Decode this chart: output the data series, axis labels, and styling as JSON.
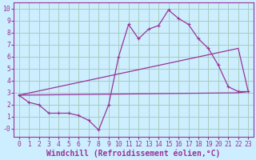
{
  "xlabel": "Windchill (Refroidissement éolien,°C)",
  "bg_color": "#cceeff",
  "grid_color": "#aaccbb",
  "line_color": "#993399",
  "xlim": [
    -0.5,
    23.5
  ],
  "ylim": [
    -0.7,
    10.5
  ],
  "xticks": [
    0,
    1,
    2,
    3,
    4,
    5,
    6,
    7,
    8,
    9,
    10,
    11,
    12,
    13,
    14,
    15,
    16,
    17,
    18,
    19,
    20,
    21,
    22,
    23
  ],
  "yticks": [
    0,
    1,
    2,
    3,
    4,
    5,
    6,
    7,
    8,
    9,
    10
  ],
  "ytick_labels": [
    "-0",
    "1",
    "2",
    "3",
    "4",
    "5",
    "6",
    "7",
    "8",
    "9",
    "10"
  ],
  "line1_x": [
    0,
    1,
    2,
    3,
    4,
    5,
    6,
    7,
    8,
    9,
    10,
    11,
    12,
    13,
    14,
    15,
    16,
    17,
    18,
    19,
    20,
    21,
    22,
    23
  ],
  "line1_y": [
    2.8,
    2.2,
    2.0,
    1.3,
    1.3,
    1.3,
    1.1,
    0.7,
    -0.1,
    2.0,
    6.0,
    8.7,
    7.5,
    8.3,
    8.6,
    9.9,
    9.2,
    8.7,
    7.5,
    6.7,
    5.3,
    3.5,
    3.1,
    3.1
  ],
  "line2_x": [
    0,
    22,
    23
  ],
  "line2_y": [
    2.8,
    6.7,
    3.1
  ],
  "line3_x": [
    0,
    22,
    23
  ],
  "line3_y": [
    2.8,
    3.0,
    3.1
  ],
  "font_family": "monospace",
  "tick_fontsize": 5.8,
  "label_fontsize": 7.0
}
